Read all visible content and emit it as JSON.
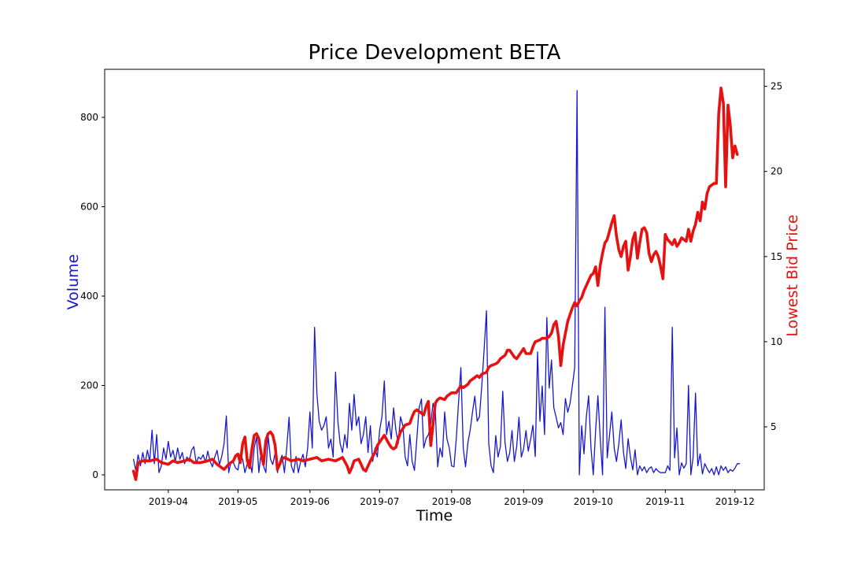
{
  "figure": {
    "title": "Price Development BETA",
    "xlabel": "Time",
    "ylabel_left": "Volume",
    "ylabel_right": "Lowest Bid Price",
    "colors": {
      "volume_line": "#1717cf",
      "price_line": "#e61212",
      "axis": "#000000",
      "background": "#ffffff"
    }
  },
  "chart_data": {
    "type": "line",
    "title": "Price Development BETA",
    "xlabel": "Time",
    "grid": false,
    "legend": null,
    "x_unit": "days from first data point (mid-March 2019), daily samples",
    "xlim_days": [
      -12.4,
      271.6
    ],
    "x_ticks": [
      {
        "day": 15,
        "label": "2019-04"
      },
      {
        "day": 45,
        "label": "2019-05"
      },
      {
        "day": 76,
        "label": "2019-06"
      },
      {
        "day": 106,
        "label": "2019-07"
      },
      {
        "day": 137,
        "label": "2019-08"
      },
      {
        "day": 168,
        "label": "2019-09"
      },
      {
        "day": 198,
        "label": "2019-10"
      },
      {
        "day": 229,
        "label": "2019-11"
      },
      {
        "day": 259,
        "label": "2019-12"
      }
    ],
    "left_axis": {
      "label": "Volume",
      "ticks": [
        0,
        200,
        400,
        600,
        800
      ],
      "range": [
        -33.5,
        907.5
      ]
    },
    "right_axis": {
      "label": "Lowest Bid Price",
      "ticks": [
        5,
        10,
        15,
        20,
        25
      ],
      "range": [
        1.3,
        26.0
      ]
    },
    "series": [
      {
        "name": "Volume",
        "axis": "left",
        "color": "#1717cf",
        "line_width": 1.3,
        "start_day": 0,
        "values": [
          35,
          10,
          45,
          20,
          50,
          25,
          55,
          30,
          100,
          25,
          90,
          5,
          20,
          60,
          35,
          75,
          40,
          55,
          30,
          60,
          35,
          50,
          25,
          40,
          30,
          55,
          63,
          26,
          40,
          35,
          45,
          28,
          53,
          30,
          18,
          40,
          55,
          23,
          41,
          70,
          132,
          5,
          30,
          28,
          15,
          11,
          46,
          35,
          5,
          25,
          35,
          5,
          60,
          85,
          5,
          53,
          20,
          5,
          88,
          35,
          23,
          49,
          5,
          30,
          44,
          5,
          60,
          129,
          20,
          5,
          41,
          5,
          30,
          46,
          18,
          60,
          141,
          60,
          330,
          180,
          120,
          100,
          110,
          130,
          60,
          80,
          40,
          230,
          120,
          70,
          50,
          90,
          60,
          160,
          100,
          180,
          110,
          130,
          70,
          90,
          130,
          50,
          110,
          30,
          60,
          40,
          100,
          130,
          210,
          90,
          120,
          80,
          150,
          100,
          70,
          130,
          110,
          40,
          20,
          90,
          30,
          10,
          80,
          150,
          170,
          60,
          81,
          90,
          114,
          160,
          140,
          18,
          60,
          40,
          141,
          80,
          60,
          20,
          18,
          80,
          164,
          240,
          60,
          18,
          72,
          100,
          141,
          176,
          120,
          130,
          200,
          280,
          367,
          70,
          20,
          5,
          88,
          40,
          63,
          187,
          72,
          30,
          49,
          99,
          30,
          63,
          129,
          40,
          58,
          99,
          53,
          80,
          111,
          41,
          275,
          120,
          199,
          90,
          352,
          194,
          257,
          150,
          129,
          105,
          117,
          90,
          171,
          140,
          160,
          200,
          240,
          860,
          0,
          110,
          47,
          130,
          177,
          60,
          0,
          100,
          177,
          80,
          0,
          375,
          38,
          90,
          141,
          60,
          30,
          70,
          123,
          50,
          14,
          81,
          40,
          11,
          56,
          0,
          20,
          9,
          18,
          5,
          14,
          18,
          5,
          14,
          8,
          5,
          5,
          5,
          20,
          10,
          330,
          38,
          105,
          0,
          27,
          15,
          25,
          200,
          0,
          40,
          183,
          20,
          47,
          2,
          25,
          14,
          5,
          14,
          0,
          18,
          0,
          20,
          10,
          18,
          5,
          12,
          8,
          15,
          25,
          25
        ]
      },
      {
        "name": "Lowest Bid Price",
        "axis": "right",
        "color": "#e61212",
        "line_width": 3.6,
        "points": [
          [
            0,
            2.4
          ],
          [
            1,
            1.9
          ],
          [
            2,
            2.9
          ],
          [
            4,
            3.0
          ],
          [
            7,
            3.0
          ],
          [
            10,
            3.1
          ],
          [
            12,
            2.9
          ],
          [
            15,
            2.8
          ],
          [
            17,
            3.0
          ],
          [
            19,
            2.9
          ],
          [
            22,
            3.0
          ],
          [
            24,
            3.1
          ],
          [
            26,
            2.9
          ],
          [
            29,
            2.9
          ],
          [
            32,
            3.0
          ],
          [
            34,
            3.1
          ],
          [
            36,
            2.8
          ],
          [
            38,
            2.6
          ],
          [
            39,
            2.5
          ],
          [
            41,
            2.8
          ],
          [
            43,
            3.0
          ],
          [
            44,
            3.3
          ],
          [
            45,
            3.4
          ],
          [
            46,
            2.9
          ],
          [
            47,
            4.0
          ],
          [
            48,
            4.4
          ],
          [
            49,
            3.0
          ],
          [
            50,
            2.6
          ],
          [
            51,
            3.7
          ],
          [
            52,
            4.5
          ],
          [
            53,
            4.6
          ],
          [
            54,
            4.3
          ],
          [
            55,
            3.4
          ],
          [
            56,
            2.8
          ],
          [
            57,
            4.2
          ],
          [
            58,
            4.6
          ],
          [
            59,
            4.7
          ],
          [
            60,
            4.5
          ],
          [
            61,
            3.9
          ],
          [
            62,
            2.5
          ],
          [
            64,
            3.1
          ],
          [
            65,
            3.2
          ],
          [
            68,
            3.0
          ],
          [
            71,
            3.1
          ],
          [
            73,
            3.0
          ],
          [
            76,
            3.1
          ],
          [
            79,
            3.2
          ],
          [
            81,
            3.0
          ],
          [
            84,
            3.1
          ],
          [
            87,
            3.0
          ],
          [
            90,
            3.2
          ],
          [
            92,
            2.7
          ],
          [
            93,
            2.3
          ],
          [
            94,
            2.6
          ],
          [
            95,
            3.0
          ],
          [
            97,
            3.1
          ],
          [
            98,
            2.8
          ],
          [
            99,
            2.5
          ],
          [
            100,
            2.4
          ],
          [
            101,
            2.7
          ],
          [
            102,
            3.0
          ],
          [
            104,
            3.5
          ],
          [
            105,
            3.9
          ],
          [
            107,
            4.3
          ],
          [
            108,
            4.5
          ],
          [
            110,
            4.0
          ],
          [
            111,
            3.8
          ],
          [
            112,
            3.7
          ],
          [
            113,
            3.8
          ],
          [
            114,
            4.3
          ],
          [
            115,
            4.7
          ],
          [
            116,
            4.9
          ],
          [
            117,
            5.1
          ],
          [
            119,
            5.2
          ],
          [
            120,
            5.6
          ],
          [
            121,
            5.9
          ],
          [
            122,
            6.0
          ],
          [
            124,
            5.8
          ],
          [
            125,
            5.7
          ],
          [
            126,
            6.2
          ],
          [
            127,
            6.5
          ],
          [
            128,
            3.9
          ],
          [
            130,
            6.4
          ],
          [
            131,
            6.6
          ],
          [
            132,
            6.7
          ],
          [
            134,
            6.6
          ],
          [
            135,
            6.8
          ],
          [
            137,
            7.0
          ],
          [
            139,
            7.0
          ],
          [
            141,
            7.4
          ],
          [
            142,
            7.3
          ],
          [
            144,
            7.5
          ],
          [
            145,
            7.7
          ],
          [
            146,
            7.8
          ],
          [
            148,
            8.0
          ],
          [
            149,
            7.9
          ],
          [
            150,
            8.1
          ],
          [
            152,
            8.2
          ],
          [
            153,
            8.5
          ],
          [
            154,
            8.6
          ],
          [
            156,
            8.7
          ],
          [
            157,
            8.8
          ],
          [
            158,
            9.0
          ],
          [
            160,
            9.2
          ],
          [
            161,
            9.5
          ],
          [
            162,
            9.5
          ],
          [
            164,
            9.1
          ],
          [
            165,
            9.0
          ],
          [
            167,
            9.4
          ],
          [
            168,
            9.6
          ],
          [
            169,
            9.3
          ],
          [
            171,
            9.3
          ],
          [
            172,
            9.7
          ],
          [
            173,
            10.0
          ],
          [
            175,
            10.1
          ],
          [
            176,
            10.2
          ],
          [
            178,
            10.2
          ],
          [
            179,
            10.3
          ],
          [
            180,
            10.5
          ],
          [
            181,
            11.0
          ],
          [
            182,
            11.2
          ],
          [
            183,
            10.3
          ],
          [
            184,
            8.6
          ],
          [
            185,
            9.8
          ],
          [
            186,
            10.5
          ],
          [
            187,
            11.2
          ],
          [
            188,
            11.6
          ],
          [
            189,
            12.0
          ],
          [
            190,
            12.3
          ],
          [
            191,
            12.1
          ],
          [
            192,
            12.4
          ],
          [
            193,
            12.6
          ],
          [
            194,
            13.0
          ],
          [
            195,
            13.3
          ],
          [
            196,
            13.6
          ],
          [
            197,
            13.9
          ],
          [
            198,
            14.0
          ],
          [
            199,
            14.4
          ],
          [
            200,
            13.3
          ],
          [
            201,
            14.5
          ],
          [
            202,
            15.2
          ],
          [
            203,
            15.8
          ],
          [
            204,
            16.0
          ],
          [
            205,
            16.5
          ],
          [
            206,
            17.0
          ],
          [
            207,
            17.4
          ],
          [
            208,
            16.2
          ],
          [
            209,
            15.4
          ],
          [
            210,
            15.0
          ],
          [
            211,
            15.6
          ],
          [
            212,
            15.9
          ],
          [
            213,
            14.2
          ],
          [
            214,
            15.0
          ],
          [
            215,
            16.0
          ],
          [
            216,
            16.4
          ],
          [
            217,
            14.9
          ],
          [
            218,
            15.8
          ],
          [
            219,
            16.6
          ],
          [
            220,
            16.7
          ],
          [
            221,
            16.4
          ],
          [
            222,
            15.2
          ],
          [
            223,
            14.7
          ],
          [
            224,
            15.1
          ],
          [
            225,
            15.3
          ],
          [
            226,
            15.0
          ],
          [
            227,
            14.4
          ],
          [
            228,
            13.7
          ],
          [
            229,
            16.3
          ],
          [
            230,
            16.0
          ],
          [
            232,
            15.7
          ],
          [
            233,
            16.0
          ],
          [
            234,
            15.6
          ],
          [
            235,
            15.8
          ],
          [
            236,
            16.1
          ],
          [
            237,
            16.0
          ],
          [
            238,
            15.9
          ],
          [
            239,
            16.6
          ],
          [
            240,
            15.9
          ],
          [
            241,
            16.5
          ],
          [
            242,
            16.9
          ],
          [
            243,
            17.6
          ],
          [
            244,
            17.1
          ],
          [
            245,
            18.2
          ],
          [
            246,
            17.8
          ],
          [
            247,
            18.7
          ],
          [
            248,
            19.1
          ],
          [
            249,
            19.2
          ],
          [
            250,
            19.3
          ],
          [
            251,
            19.3
          ],
          [
            252,
            23.4
          ],
          [
            253,
            24.9
          ],
          [
            254,
            24.0
          ],
          [
            255,
            19.1
          ],
          [
            256,
            23.9
          ],
          [
            257,
            22.7
          ],
          [
            258,
            20.8
          ],
          [
            259,
            21.5
          ],
          [
            260,
            21.0
          ]
        ]
      }
    ]
  }
}
